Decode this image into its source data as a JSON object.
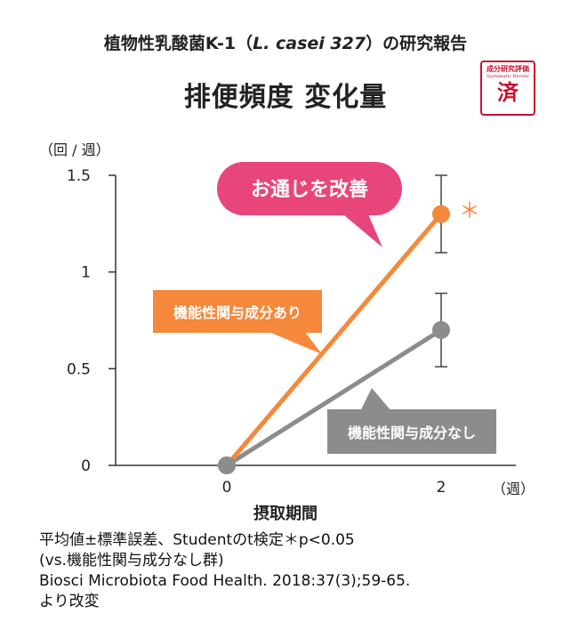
{
  "header": {
    "subtitle_prefix": "植物性乳酸菌K-1（",
    "subtitle_italic": "L. casei 327",
    "subtitle_suffix": "）の研究報告",
    "title": "排便頻度 変化量"
  },
  "stamp": {
    "line1": "成分研究評価",
    "line2": "Systematic Review",
    "line3": "済"
  },
  "chart_data": {
    "type": "line",
    "title": "排便頻度 変化量",
    "xlabel": "摂取期間",
    "x_unit": "（週）",
    "y_unit": "（回 / 週）",
    "x_ticks": [
      "0",
      "2"
    ],
    "y_ticks": [
      "0",
      "0.5",
      "1",
      "1.5"
    ],
    "ylim": [
      0,
      1.5
    ],
    "x": [
      0,
      2
    ],
    "series": [
      {
        "name": "機能性関与成分あり",
        "values": [
          0,
          1.3
        ],
        "error": [
          0,
          0.2
        ],
        "color": "#f5883a"
      },
      {
        "name": "機能性関与成分なし",
        "values": [
          0,
          0.7
        ],
        "error": [
          0,
          0.19
        ],
        "color": "#8c8c8c"
      }
    ],
    "significance_marker": "＊",
    "callout": "お通じを改善",
    "callout_color": "#e8457a",
    "grid": false
  },
  "notes": [
    "平均値±標準誤差、Studentのt検定＊p<0.05",
    "(vs.機能性関与成分なし群)",
    "Biosci Microbiota Food Health. 2018:37(3);59-65.",
    "より改変"
  ]
}
